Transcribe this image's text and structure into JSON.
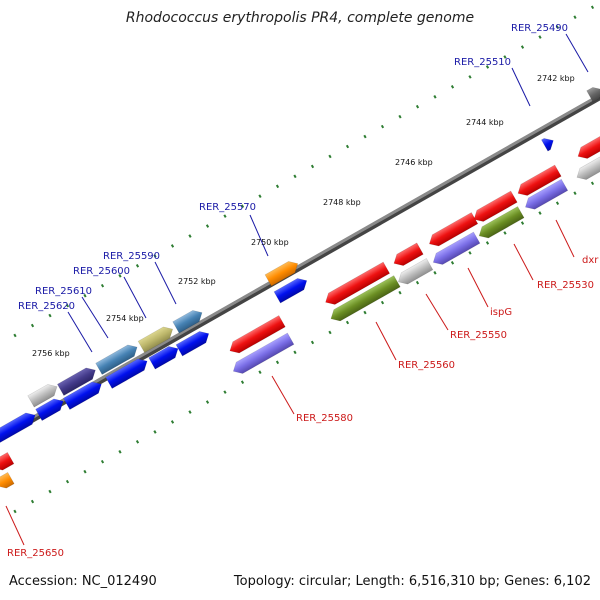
{
  "title": "Rhodococcus erythropolis PR4, complete genome",
  "footer": {
    "accession": "Accession: NC_012490",
    "topology": "Topology: circular; Length: 6,516,310 bp; Genes: 6,102"
  },
  "colors": {
    "forward_label": "#1a1aa6",
    "reverse_label": "#cc1a1a",
    "backbone": "#777777",
    "tick": "#2e7d32"
  },
  "kbp_labels": [
    "2742 kbp",
    "2744 kbp",
    "2746 kbp",
    "2748 kbp",
    "2750 kbp",
    "2752 kbp",
    "2754 kbp",
    "2756 kbp"
  ],
  "gene_labels": [
    {
      "text": "RER_25490",
      "strand": "forward"
    },
    {
      "text": "RER_25510",
      "strand": "forward"
    },
    {
      "text": "RER_25570",
      "strand": "forward"
    },
    {
      "text": "RER_25590",
      "strand": "forward"
    },
    {
      "text": "RER_25600",
      "strand": "forward"
    },
    {
      "text": "RER_25610",
      "strand": "forward"
    },
    {
      "text": "RER_25620",
      "strand": "forward"
    },
    {
      "text": "dxr",
      "strand": "reverse"
    },
    {
      "text": "RER_25530",
      "strand": "reverse"
    },
    {
      "text": "ispG",
      "strand": "reverse"
    },
    {
      "text": "RER_25550",
      "strand": "reverse"
    },
    {
      "text": "RER_25560",
      "strand": "reverse"
    },
    {
      "text": "RER_25580",
      "strand": "reverse"
    },
    {
      "text": "RER_25650",
      "strand": "reverse"
    }
  ]
}
